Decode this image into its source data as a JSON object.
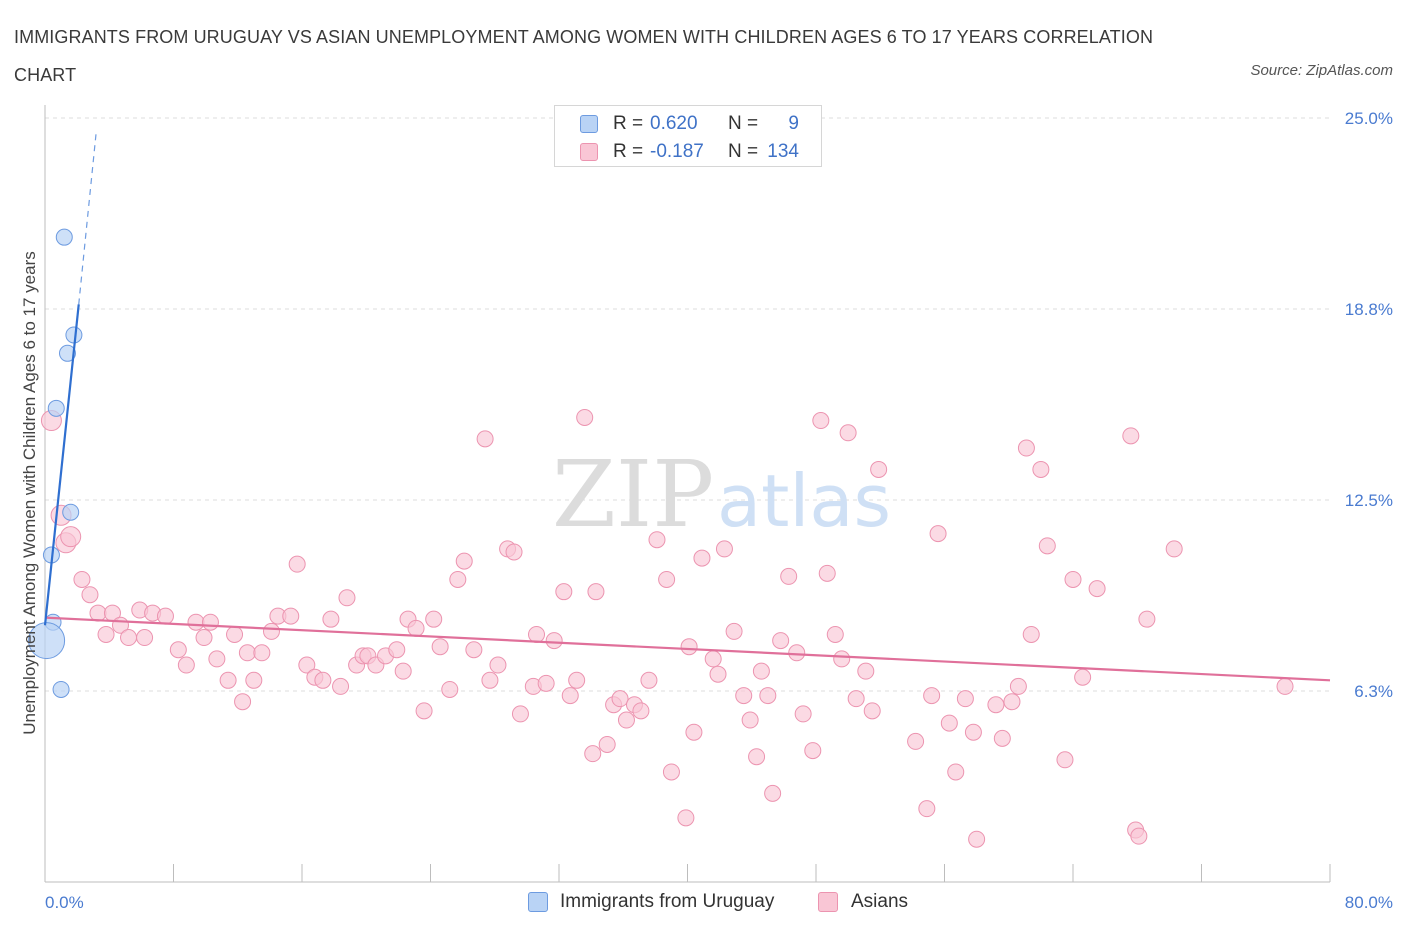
{
  "header": {
    "title": "IMMIGRANTS FROM URUGUAY VS ASIAN UNEMPLOYMENT AMONG WOMEN WITH CHILDREN AGES 6 TO 17 YEARS CORRELATION CHART",
    "source": "Source: ZipAtlas.com"
  },
  "watermark": {
    "zip": "ZIP",
    "atlas": "atlas"
  },
  "legend": {
    "rows": [
      {
        "r_label": "R =",
        "r_value": "0.620",
        "n_label": "N =",
        "n_value": "9",
        "color": "#b9d3f5",
        "border": "#6d9be0"
      },
      {
        "r_label": "R =",
        "r_value": "-0.187",
        "n_label": "N =",
        "n_value": "134",
        "color": "#f9c6d5",
        "border": "#ec94b0"
      }
    ]
  },
  "bottom_legend": {
    "items": [
      {
        "label": "Immigrants from Uruguay",
        "color": "#b9d3f5",
        "border": "#6d9be0"
      },
      {
        "label": "Asians",
        "color": "#f9c6d5",
        "border": "#ec94b0"
      }
    ]
  },
  "chart_data": {
    "type": "scatter",
    "title": "IMMIGRANTS FROM URUGUAY VS ASIAN UNEMPLOYMENT AMONG WOMEN WITH CHILDREN AGES 6 TO 17 YEARS CORRELATION CHART",
    "xlabel": "",
    "ylabel": "Unemployment Among Women with Children Ages 6 to 17 years",
    "xlim": [
      0,
      80
    ],
    "ylim": [
      0,
      25
    ],
    "x_tick_labels": [
      "0.0%",
      "80.0%"
    ],
    "y_tick_labels": [
      "6.3%",
      "12.5%",
      "18.8%",
      "25.0%"
    ],
    "y_tick_values": [
      6.25,
      12.5,
      18.75,
      25.0
    ],
    "grid": "horizontal dashed",
    "legend_position": "top-center",
    "series": [
      {
        "name": "Immigrants from Uruguay",
        "color": "#b9d3f5",
        "stroke": "#6d9be0",
        "points": [
          [
            1.2,
            21.1
          ],
          [
            1.8,
            17.9
          ],
          [
            1.4,
            17.3
          ],
          [
            0.7,
            15.5
          ],
          [
            1.6,
            12.1
          ],
          [
            0.4,
            10.7
          ],
          [
            0.5,
            8.5
          ],
          [
            0.1,
            7.9
          ],
          [
            1.0,
            6.3
          ]
        ],
        "trend": {
          "x0": 0.0,
          "y0": 8.4,
          "x1": 2.1,
          "y1": 18.9,
          "dash_to_x": 3.2,
          "dash_to_y": 24.6
        }
      },
      {
        "name": "Asians",
        "color": "#f9c6d5",
        "stroke": "#ec94b0",
        "points": [
          [
            0.4,
            15.1
          ],
          [
            1.0,
            12.0
          ],
          [
            1.3,
            11.1
          ],
          [
            1.6,
            11.3
          ],
          [
            2.3,
            9.9
          ],
          [
            2.8,
            9.4
          ],
          [
            3.3,
            8.8
          ],
          [
            4.2,
            8.8
          ],
          [
            4.7,
            8.4
          ],
          [
            3.8,
            8.1
          ],
          [
            5.2,
            8.0
          ],
          [
            6.2,
            8.0
          ],
          [
            5.9,
            8.9
          ],
          [
            6.7,
            8.8
          ],
          [
            7.5,
            8.7
          ],
          [
            8.3,
            7.6
          ],
          [
            8.8,
            7.1
          ],
          [
            9.4,
            8.5
          ],
          [
            9.9,
            8.0
          ],
          [
            10.3,
            8.5
          ],
          [
            10.7,
            7.3
          ],
          [
            11.4,
            6.6
          ],
          [
            11.8,
            8.1
          ],
          [
            12.3,
            5.9
          ],
          [
            12.6,
            7.5
          ],
          [
            13.0,
            6.6
          ],
          [
            13.5,
            7.5
          ],
          [
            14.1,
            8.2
          ],
          [
            14.5,
            8.7
          ],
          [
            15.3,
            8.7
          ],
          [
            15.7,
            10.4
          ],
          [
            16.3,
            7.1
          ],
          [
            16.8,
            6.7
          ],
          [
            17.3,
            6.6
          ],
          [
            17.8,
            8.6
          ],
          [
            18.4,
            6.4
          ],
          [
            18.8,
            9.3
          ],
          [
            19.4,
            7.1
          ],
          [
            19.8,
            7.4
          ],
          [
            20.1,
            7.4
          ],
          [
            20.6,
            7.1
          ],
          [
            21.2,
            7.4
          ],
          [
            21.9,
            7.6
          ],
          [
            22.3,
            6.9
          ],
          [
            22.6,
            8.6
          ],
          [
            23.1,
            8.3
          ],
          [
            23.6,
            5.6
          ],
          [
            24.2,
            8.6
          ],
          [
            24.6,
            7.7
          ],
          [
            25.2,
            6.3
          ],
          [
            25.7,
            9.9
          ],
          [
            26.1,
            10.5
          ],
          [
            26.7,
            7.6
          ],
          [
            27.4,
            14.5
          ],
          [
            27.7,
            6.6
          ],
          [
            28.2,
            7.1
          ],
          [
            28.8,
            10.9
          ],
          [
            29.2,
            10.8
          ],
          [
            29.6,
            5.5
          ],
          [
            30.4,
            6.4
          ],
          [
            30.6,
            8.1
          ],
          [
            31.2,
            6.5
          ],
          [
            31.7,
            7.9
          ],
          [
            32.3,
            9.5
          ],
          [
            32.7,
            6.1
          ],
          [
            33.1,
            6.6
          ],
          [
            33.6,
            15.2
          ],
          [
            34.1,
            4.2
          ],
          [
            34.3,
            9.5
          ],
          [
            35.0,
            4.5
          ],
          [
            35.4,
            5.8
          ],
          [
            35.8,
            6.0
          ],
          [
            36.2,
            5.3
          ],
          [
            36.7,
            5.8
          ],
          [
            37.1,
            5.6
          ],
          [
            37.6,
            6.6
          ],
          [
            38.1,
            11.2
          ],
          [
            38.7,
            9.9
          ],
          [
            39.0,
            3.6
          ],
          [
            39.9,
            2.1
          ],
          [
            40.1,
            7.7
          ],
          [
            40.4,
            4.9
          ],
          [
            40.9,
            10.6
          ],
          [
            41.6,
            7.3
          ],
          [
            41.9,
            6.8
          ],
          [
            42.3,
            10.9
          ],
          [
            42.9,
            8.2
          ],
          [
            43.5,
            6.1
          ],
          [
            43.9,
            5.3
          ],
          [
            44.3,
            4.1
          ],
          [
            44.6,
            6.9
          ],
          [
            45.0,
            6.1
          ],
          [
            45.3,
            2.9
          ],
          [
            45.8,
            7.9
          ],
          [
            46.3,
            10.0
          ],
          [
            46.8,
            7.5
          ],
          [
            47.2,
            5.5
          ],
          [
            47.8,
            4.3
          ],
          [
            48.3,
            15.1
          ],
          [
            48.7,
            10.1
          ],
          [
            49.2,
            8.1
          ],
          [
            49.6,
            7.3
          ],
          [
            50.0,
            14.7
          ],
          [
            50.5,
            6.0
          ],
          [
            51.1,
            6.9
          ],
          [
            51.5,
            5.6
          ],
          [
            51.9,
            13.5
          ],
          [
            54.2,
            4.6
          ],
          [
            54.9,
            2.4
          ],
          [
            55.2,
            6.1
          ],
          [
            55.6,
            11.4
          ],
          [
            56.3,
            5.2
          ],
          [
            56.7,
            3.6
          ],
          [
            57.3,
            6.0
          ],
          [
            57.8,
            4.9
          ],
          [
            58.0,
            1.4
          ],
          [
            59.2,
            5.8
          ],
          [
            59.6,
            4.7
          ],
          [
            60.2,
            5.9
          ],
          [
            60.6,
            6.4
          ],
          [
            61.1,
            14.2
          ],
          [
            61.4,
            8.1
          ],
          [
            62.0,
            13.5
          ],
          [
            62.4,
            11.0
          ],
          [
            63.5,
            4.0
          ],
          [
            64.0,
            9.9
          ],
          [
            64.6,
            6.7
          ],
          [
            65.5,
            9.6
          ],
          [
            67.6,
            14.6
          ],
          [
            67.9,
            1.7
          ],
          [
            68.1,
            1.5
          ],
          [
            68.6,
            8.6
          ],
          [
            70.3,
            10.9
          ],
          [
            77.2,
            6.4
          ]
        ],
        "trend": {
          "x0": 0.0,
          "y0": 8.65,
          "x1": 80.0,
          "y1": 6.6
        }
      }
    ]
  }
}
